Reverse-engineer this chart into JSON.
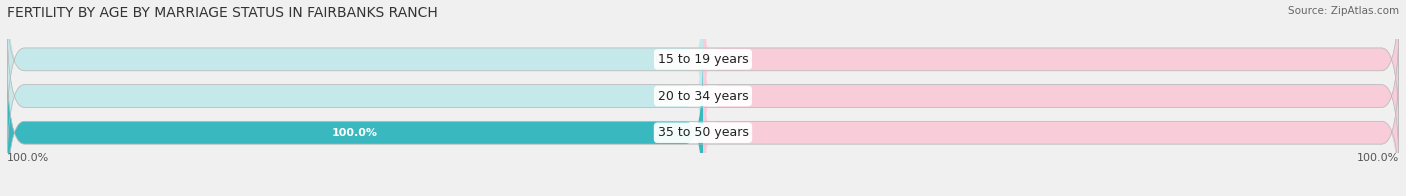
{
  "title": "FERTILITY BY AGE BY MARRIAGE STATUS IN FAIRBANKS RANCH",
  "source": "Source: ZipAtlas.com",
  "categories": [
    "15 to 19 years",
    "20 to 34 years",
    "35 to 50 years"
  ],
  "married_values": [
    0.0,
    0.0,
    100.0
  ],
  "unmarried_values": [
    0.0,
    0.0,
    0.0
  ],
  "married_color": "#3ab8c0",
  "unmarried_color": "#f4a0b5",
  "married_bg_color": "#c5e8ea",
  "unmarried_bg_color": "#f8ccd8",
  "bar_bg_outer": "#e8e8e8",
  "bar_height": 0.62,
  "xlim": [
    -100,
    100
  ],
  "x_left_label": "100.0%",
  "x_right_label": "100.0%",
  "title_fontsize": 10,
  "source_fontsize": 7.5,
  "label_fontsize": 8,
  "category_fontsize": 9,
  "legend_fontsize": 9,
  "bg_color": "#f0f0f0",
  "row_bg_color": "#e8e8e8"
}
